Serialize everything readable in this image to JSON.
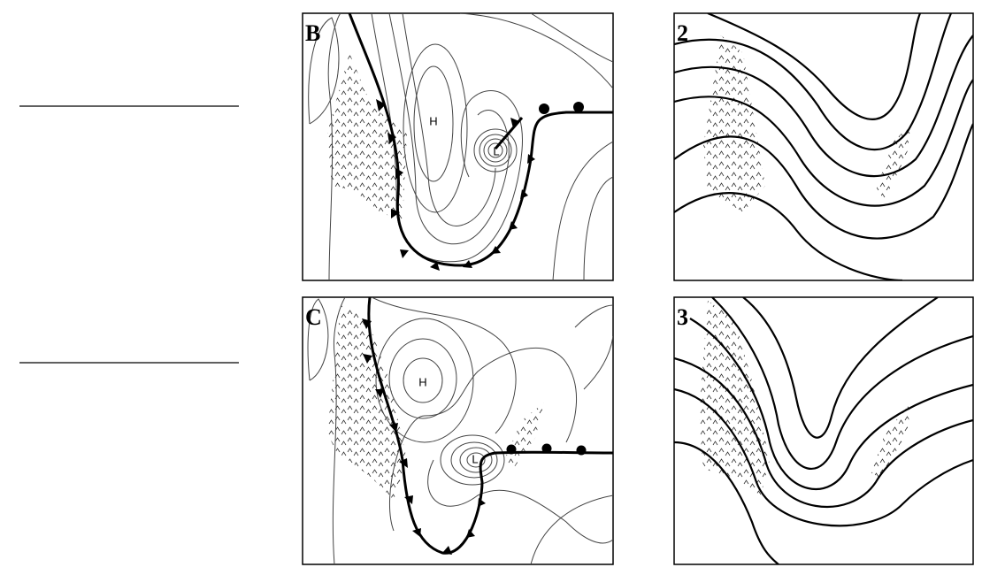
{
  "panels": [
    {
      "label": "B",
      "symbols": [
        "H",
        "L"
      ]
    },
    {
      "label": "2"
    },
    {
      "label": "C",
      "symbols": [
        "H",
        "L"
      ]
    },
    {
      "label": "3"
    }
  ]
}
